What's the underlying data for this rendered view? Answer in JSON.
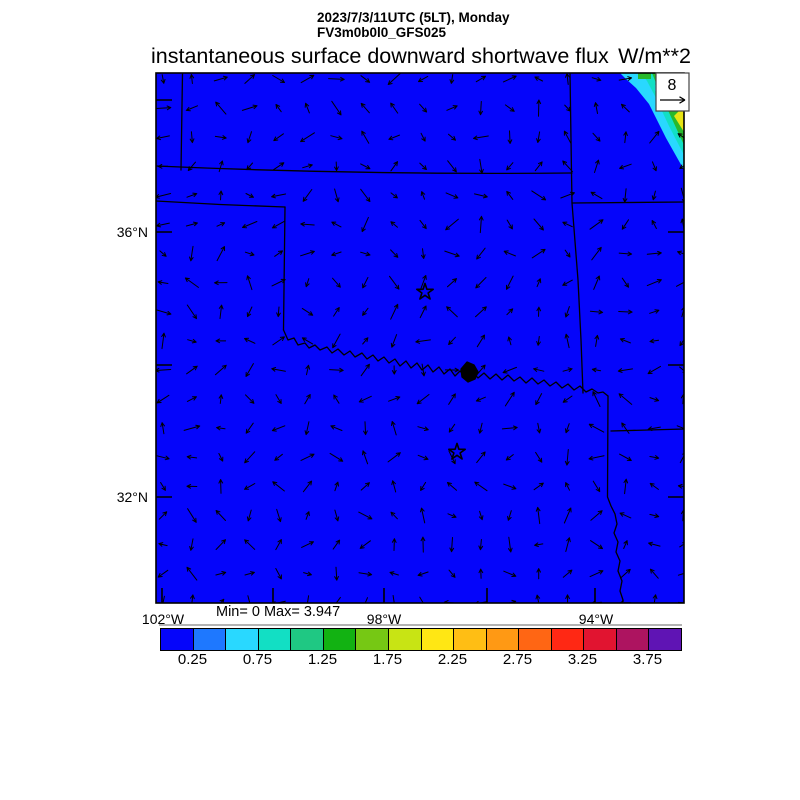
{
  "header": {
    "valid_time": "2023/7/3/11UTC (5LT), Monday",
    "model_run": "FV3m0b0l0_GFS025",
    "title": "instantaneous surface downward shortwave flux",
    "units": "W/m**2"
  },
  "map": {
    "lat_tick_labels": [
      {
        "label": "36°N"
      },
      {
        "label": "32°N"
      }
    ],
    "lon_tick_labels": [
      {
        "label": "102°W"
      },
      {
        "label": "98°W"
      },
      {
        "label": "94°W"
      }
    ],
    "stats_text": "Min= 0 Max= 3.947",
    "vector_legend_value": "8"
  },
  "chart_data": {
    "type": "heatmap",
    "title": "instantaneous surface downward shortwave flux",
    "units": "W/m**2",
    "valid_time": "2023/7/3/11UTC (5LT), Monday",
    "model_run": "FV3m0b0l0_GFS025",
    "stats": {
      "min": 0,
      "max": 3.947
    },
    "extent": {
      "lon_west_deg": 102.1,
      "lon_east_deg": 92.6,
      "lat_south_deg": 30.4,
      "lat_north_deg": 38.4
    },
    "lat_ticks_deg_n": [
      38,
      36,
      34,
      32
    ],
    "lon_ticks_deg_w": [
      102,
      100,
      98,
      96,
      94
    ],
    "contour_interval": 0.25,
    "value_range": [
      0,
      4
    ],
    "field_description": "Shortwave flux near 0 W/m**2 (solid blue) over the whole Oklahoma/Texas domain before sunrise, except the northeast map corner where bands of cyan, teal, green and yellow rise toward the corner maximum of 3.947",
    "wind_vector_reference": 8,
    "map_fill": "#0505fa",
    "ne_corner_band_colors": [
      "#29d8ff",
      "#12dfc4",
      "#28b92c",
      "#e8e414"
    ],
    "colorbar": {
      "tick_labels": [
        "0.25",
        "0.75",
        "1.25",
        "1.75",
        "2.25",
        "2.75",
        "3.25",
        "3.75"
      ],
      "colors": [
        "#0505fa",
        "#1e78ff",
        "#29d8ff",
        "#12dfc4",
        "#1fc883",
        "#12b212",
        "#76c814",
        "#c8e414",
        "#ffe714",
        "#ffbe14",
        "#ff9914",
        "#ff6614",
        "#ff2814",
        "#e11430",
        "#ad1460",
        "#5f14b4"
      ]
    }
  }
}
